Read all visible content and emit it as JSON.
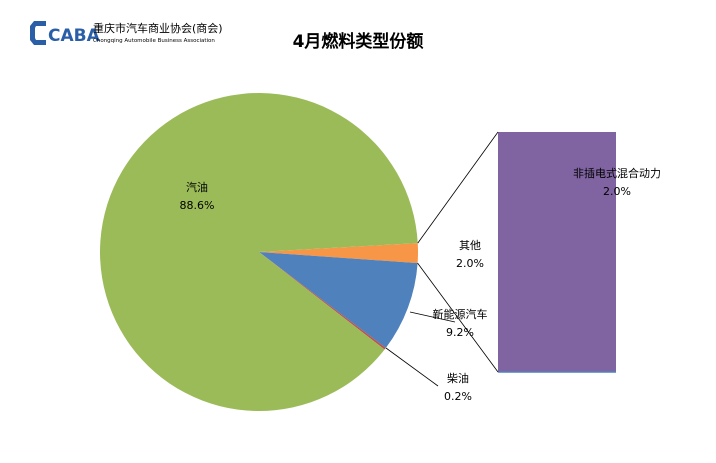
{
  "logo": {
    "mark": "CABA",
    "cn": "重庆市汽车商业协会(商会)",
    "en": "Chongqing Automobile Business Association"
  },
  "chart_data": [
    {
      "type": "pie",
      "title": "4月燃料类型份额",
      "slices": [
        {
          "name": "汽油",
          "value": 88.6,
          "label": "88.6%",
          "color": "#9BBB59"
        },
        {
          "name": "其他",
          "value": 2.0,
          "label": "2.0%",
          "color": "#F79646"
        },
        {
          "name": "新能源汽车",
          "value": 9.2,
          "label": "9.2%",
          "color": "#4F81BD"
        },
        {
          "name": "柴油",
          "value": 0.2,
          "label": "0.2%",
          "color": "#C0504D"
        }
      ]
    },
    {
      "type": "bar",
      "categories": [
        "非插电式混合动力"
      ],
      "values": [
        2.0
      ],
      "labels": [
        "2.0%"
      ],
      "color": "#8064A2"
    }
  ]
}
